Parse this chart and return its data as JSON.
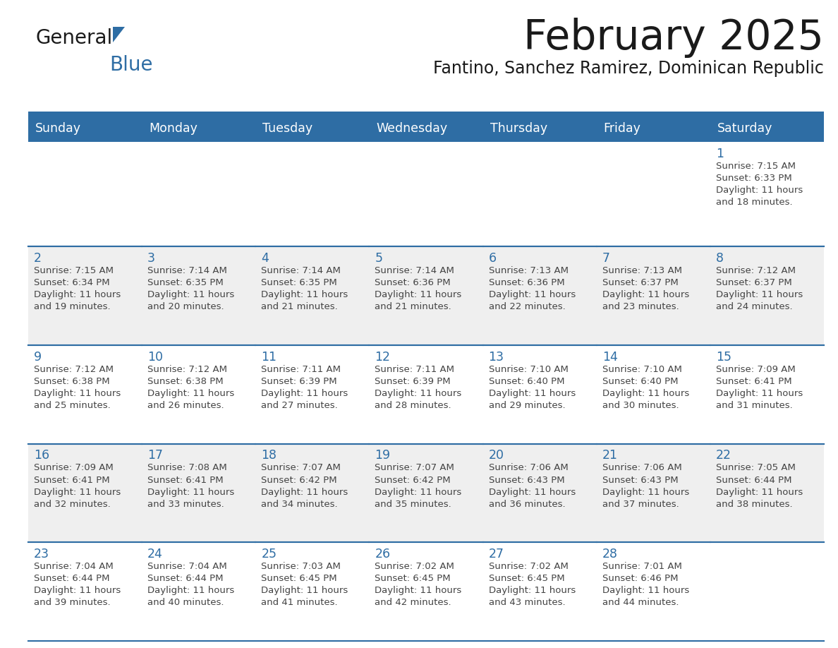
{
  "title": "February 2025",
  "subtitle": "Fantino, Sanchez Ramirez, Dominican Republic",
  "header_bg_color": "#2E6DA4",
  "header_text_color": "#FFFFFF",
  "row_bg_white": "#FFFFFF",
  "row_bg_gray": "#EFEFEF",
  "day_number_color": "#2E6DA4",
  "text_color": "#444444",
  "separator_color": "#2E6DA4",
  "days_of_week": [
    "Sunday",
    "Monday",
    "Tuesday",
    "Wednesday",
    "Thursday",
    "Friday",
    "Saturday"
  ],
  "calendar_data": [
    [
      null,
      null,
      null,
      null,
      null,
      null,
      {
        "day": 1,
        "sunrise": "7:15 AM",
        "sunset": "6:33 PM",
        "daylight": "11 hours and 18 minutes."
      }
    ],
    [
      {
        "day": 2,
        "sunrise": "7:15 AM",
        "sunset": "6:34 PM",
        "daylight": "11 hours and 19 minutes."
      },
      {
        "day": 3,
        "sunrise": "7:14 AM",
        "sunset": "6:35 PM",
        "daylight": "11 hours and 20 minutes."
      },
      {
        "day": 4,
        "sunrise": "7:14 AM",
        "sunset": "6:35 PM",
        "daylight": "11 hours and 21 minutes."
      },
      {
        "day": 5,
        "sunrise": "7:14 AM",
        "sunset": "6:36 PM",
        "daylight": "11 hours and 21 minutes."
      },
      {
        "day": 6,
        "sunrise": "7:13 AM",
        "sunset": "6:36 PM",
        "daylight": "11 hours and 22 minutes."
      },
      {
        "day": 7,
        "sunrise": "7:13 AM",
        "sunset": "6:37 PM",
        "daylight": "11 hours and 23 minutes."
      },
      {
        "day": 8,
        "sunrise": "7:12 AM",
        "sunset": "6:37 PM",
        "daylight": "11 hours and 24 minutes."
      }
    ],
    [
      {
        "day": 9,
        "sunrise": "7:12 AM",
        "sunset": "6:38 PM",
        "daylight": "11 hours and 25 minutes."
      },
      {
        "day": 10,
        "sunrise": "7:12 AM",
        "sunset": "6:38 PM",
        "daylight": "11 hours and 26 minutes."
      },
      {
        "day": 11,
        "sunrise": "7:11 AM",
        "sunset": "6:39 PM",
        "daylight": "11 hours and 27 minutes."
      },
      {
        "day": 12,
        "sunrise": "7:11 AM",
        "sunset": "6:39 PM",
        "daylight": "11 hours and 28 minutes."
      },
      {
        "day": 13,
        "sunrise": "7:10 AM",
        "sunset": "6:40 PM",
        "daylight": "11 hours and 29 minutes."
      },
      {
        "day": 14,
        "sunrise": "7:10 AM",
        "sunset": "6:40 PM",
        "daylight": "11 hours and 30 minutes."
      },
      {
        "day": 15,
        "sunrise": "7:09 AM",
        "sunset": "6:41 PM",
        "daylight": "11 hours and 31 minutes."
      }
    ],
    [
      {
        "day": 16,
        "sunrise": "7:09 AM",
        "sunset": "6:41 PM",
        "daylight": "11 hours and 32 minutes."
      },
      {
        "day": 17,
        "sunrise": "7:08 AM",
        "sunset": "6:41 PM",
        "daylight": "11 hours and 33 minutes."
      },
      {
        "day": 18,
        "sunrise": "7:07 AM",
        "sunset": "6:42 PM",
        "daylight": "11 hours and 34 minutes."
      },
      {
        "day": 19,
        "sunrise": "7:07 AM",
        "sunset": "6:42 PM",
        "daylight": "11 hours and 35 minutes."
      },
      {
        "day": 20,
        "sunrise": "7:06 AM",
        "sunset": "6:43 PM",
        "daylight": "11 hours and 36 minutes."
      },
      {
        "day": 21,
        "sunrise": "7:06 AM",
        "sunset": "6:43 PM",
        "daylight": "11 hours and 37 minutes."
      },
      {
        "day": 22,
        "sunrise": "7:05 AM",
        "sunset": "6:44 PM",
        "daylight": "11 hours and 38 minutes."
      }
    ],
    [
      {
        "day": 23,
        "sunrise": "7:04 AM",
        "sunset": "6:44 PM",
        "daylight": "11 hours and 39 minutes."
      },
      {
        "day": 24,
        "sunrise": "7:04 AM",
        "sunset": "6:44 PM",
        "daylight": "11 hours and 40 minutes."
      },
      {
        "day": 25,
        "sunrise": "7:03 AM",
        "sunset": "6:45 PM",
        "daylight": "11 hours and 41 minutes."
      },
      {
        "day": 26,
        "sunrise": "7:02 AM",
        "sunset": "6:45 PM",
        "daylight": "11 hours and 42 minutes."
      },
      {
        "day": 27,
        "sunrise": "7:02 AM",
        "sunset": "6:45 PM",
        "daylight": "11 hours and 43 minutes."
      },
      {
        "day": 28,
        "sunrise": "7:01 AM",
        "sunset": "6:46 PM",
        "daylight": "11 hours and 44 minutes."
      },
      null
    ]
  ]
}
